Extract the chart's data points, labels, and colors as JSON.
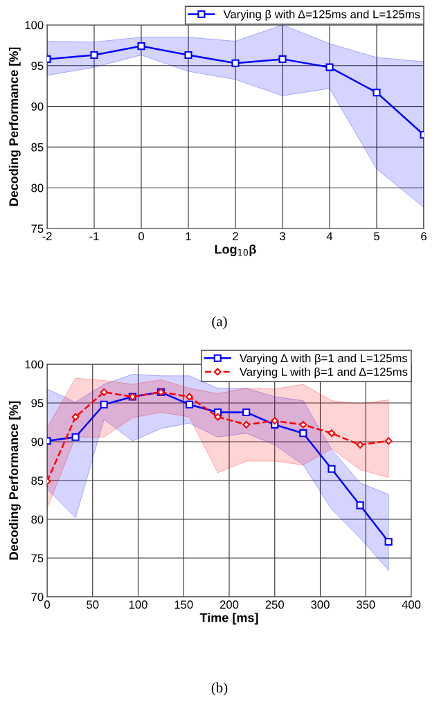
{
  "chart_data": [
    {
      "type": "line",
      "xlabel": "Log$_{10}$β",
      "ylabel": "Decoding Performance [%]",
      "annotations": [
        "(a)"
      ],
      "x": [
        -2,
        -1,
        0,
        1,
        2,
        3,
        4,
        5,
        6
      ],
      "series": [
        {
          "name": "Varying β with Δ=125ms and L=125ms",
          "color": "#0000ff",
          "marker": "square",
          "line_style": "solid",
          "values": [
            95.8,
            96.3,
            97.4,
            96.3,
            95.3,
            95.8,
            94.8,
            91.7,
            86.5
          ],
          "lower": [
            93.8,
            94.8,
            96.3,
            94.3,
            93.3,
            91.3,
            92.2,
            82.3,
            77.6
          ],
          "upper": [
            98.0,
            97.9,
            98.5,
            98.5,
            98.0,
            100,
            97.7,
            96.0,
            95.5
          ]
        }
      ],
      "xlim": [
        -2,
        6
      ],
      "xticks": [
        {
          "value": -2,
          "label": "-2"
        },
        {
          "value": -1,
          "label": "-1"
        },
        0,
        1,
        2,
        3,
        4,
        5,
        6
      ],
      "ylim": [
        75,
        100
      ],
      "yticks": [
        75,
        80,
        85,
        90,
        95,
        100
      ],
      "grid": true,
      "legend": "top right"
    },
    {
      "type": "line",
      "xlabel": "Time [ms]",
      "ylabel": "Decoding Performance [%]",
      "annotations": [
        "(b)"
      ],
      "x": [
        0,
        31.25,
        62.5,
        93.75,
        125,
        156.25,
        187.5,
        218.75,
        250,
        281.25,
        312.5,
        343.75,
        375
      ],
      "series": [
        {
          "name": "Varying Δ with β=1 and L=125ms",
          "color": "#0000ff",
          "marker": "square",
          "line_style": "solid",
          "values": [
            90.1,
            90.6,
            94.8,
            95.8,
            96.4,
            94.8,
            93.8,
            93.8,
            92.2,
            91.1,
            86.5,
            81.8,
            77.1
          ],
          "lower": [
            83.9,
            80.2,
            92.9,
            90.1,
            91.7,
            92.4,
            90.6,
            91.1,
            89.6,
            87.0,
            81.3,
            77.6,
            73.4
          ],
          "upper": [
            96.8,
            95.1,
            97.4,
            98.7,
            98.5,
            98.5,
            96.9,
            96.9,
            95.8,
            95.3,
            89.0,
            84.7,
            83.2
          ]
        },
        {
          "name": "Varying L with β=1 and Δ=125ms",
          "color": "#ff0000",
          "marker": "diamond",
          "line_style": "dashed",
          "values": [
            84.9,
            93.2,
            96.4,
            95.8,
            96.4,
            95.8,
            93.2,
            92.2,
            92.7,
            92.2,
            91.1,
            89.6,
            90.1
          ],
          "lower": [
            81.4,
            90.6,
            90.6,
            93.1,
            93.8,
            93.2,
            86.0,
            87.5,
            87.5,
            87.0,
            89.1,
            86.4,
            85.4
          ],
          "upper": [
            91.8,
            98.2,
            97.9,
            97.4,
            98.0,
            96.9,
            96.2,
            96.9,
            96.8,
            97.4,
            95.3,
            94.9,
            95.4
          ]
        }
      ],
      "xlim": [
        0,
        400
      ],
      "xticks": [
        0,
        50,
        100,
        150,
        200,
        250,
        300,
        350,
        400
      ],
      "ylim": [
        70,
        100
      ],
      "yticks": [
        70,
        75,
        80,
        85,
        90,
        95,
        100
      ],
      "grid": true,
      "legend": "top right"
    }
  ]
}
